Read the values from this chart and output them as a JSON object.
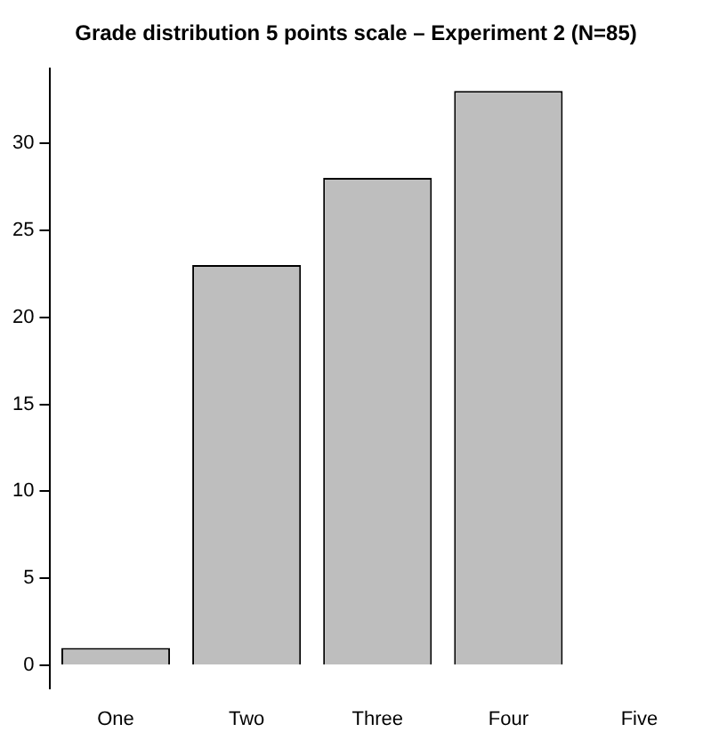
{
  "chart_data": {
    "type": "bar",
    "title": "Grade distribution 5 points scale – Experiment 2 (N=85)",
    "categories": [
      "One",
      "Two",
      "Three",
      "Four",
      "Five"
    ],
    "values": [
      1,
      23,
      28,
      33,
      0
    ],
    "color": "#bebebe",
    "ylim": [
      -1.3,
      34.3
    ],
    "yticks": [
      0,
      5,
      10,
      15,
      20,
      25,
      30
    ],
    "grid": false
  }
}
